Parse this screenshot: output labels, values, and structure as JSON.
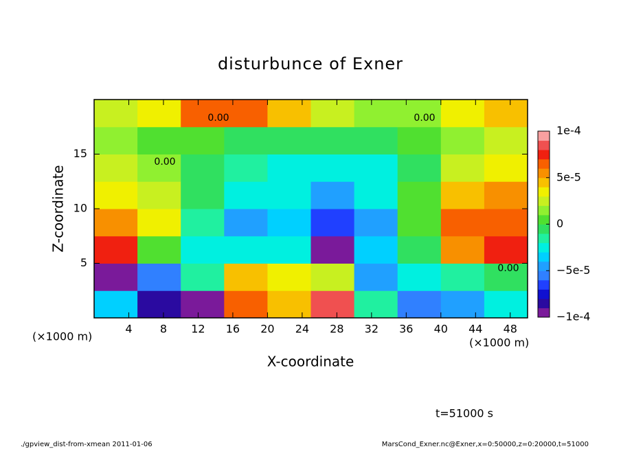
{
  "chart_data": {
    "type": "heatmap",
    "title": "disturbunce of Exner",
    "xlabel": "X-coordinate",
    "ylabel": "Z-coordinate",
    "x_unit": "(×1000 m)",
    "y_unit": "(×1000 m)",
    "time_label": "t=51000 s",
    "footer_left": "./gpview_dist-from-xmean  2011-01-06",
    "footer_right": "MarsCond_Exner.nc@Exner,x=0:50000,z=0:20000,t=51000",
    "contour_labels": [
      "0.00",
      "0.00",
      "0.00",
      "0.00"
    ],
    "xlim": [
      0,
      50
    ],
    "xticks": [
      4,
      8,
      12,
      16,
      20,
      24,
      28,
      32,
      36,
      40,
      44,
      48
    ],
    "ylim": [
      0,
      20
    ],
    "yticks": [
      5,
      10,
      15
    ],
    "x": [
      2.5,
      7.5,
      12.5,
      17.5,
      22.5,
      27.5,
      32.5,
      37.5,
      42.5,
      47.5
    ],
    "y": [
      1.25,
      3.75,
      6.25,
      8.75,
      11.25,
      13.75,
      16.25,
      18.75
    ],
    "z": [
      [
        -4e-05,
        -8e-05,
        -0.0001,
        6e-05,
        4e-05,
        8e-05,
        -2e-05,
        -6e-05,
        -5e-05,
        -3e-05
      ],
      [
        -0.0001,
        -6e-05,
        -2e-05,
        4e-05,
        3e-05,
        2e-05,
        -5e-05,
        -3e-05,
        -2e-05,
        -1e-05
      ],
      [
        7e-05,
        0,
        -3e-05,
        -3e-05,
        -3e-05,
        -0.0001,
        -4e-05,
        -1e-05,
        5e-05,
        7e-05
      ],
      [
        5e-05,
        3e-05,
        -2e-05,
        -5e-05,
        -4e-05,
        -7e-05,
        -5e-05,
        0,
        6e-05,
        6e-05
      ],
      [
        3e-05,
        2e-05,
        -1e-05,
        -3e-05,
        -3e-05,
        -5e-05,
        -3e-05,
        0,
        4e-05,
        5e-05
      ],
      [
        2e-05,
        1e-05,
        -1e-05,
        -2e-05,
        -3e-05,
        -3e-05,
        -3e-05,
        -1e-05,
        2e-05,
        3e-05
      ],
      [
        1e-05,
        0,
        0,
        -1e-05,
        -1e-05,
        -1e-05,
        -1e-05,
        0,
        1e-05,
        2e-05
      ],
      [
        2e-05,
        3e-05,
        6e-05,
        6e-05,
        4e-05,
        2e-05,
        1e-05,
        1e-05,
        3e-05,
        4e-05
      ]
    ],
    "clim": [
      -0.0001,
      0.0001
    ],
    "cticks": [
      {
        "value": -0.0001,
        "label": "−1e-4"
      },
      {
        "value": -5e-05,
        "label": "−5e-5"
      },
      0,
      {
        "value": 5e-05,
        "label": "5e-5"
      },
      {
        "value": 0.0001,
        "label": "1e-4"
      }
    ],
    "colors": [
      "#7a1a9a",
      "#2a0aa0",
      "#1010d0",
      "#2040ff",
      "#3080ff",
      "#20a0ff",
      "#00d0ff",
      "#00f0e0",
      "#20f0a0",
      "#30e060",
      "#50e030",
      "#90f030",
      "#c8f020",
      "#f0f000",
      "#f8c000",
      "#f89000",
      "#f86000",
      "#f02010",
      "#f05050",
      "#f8a0a0"
    ]
  }
}
